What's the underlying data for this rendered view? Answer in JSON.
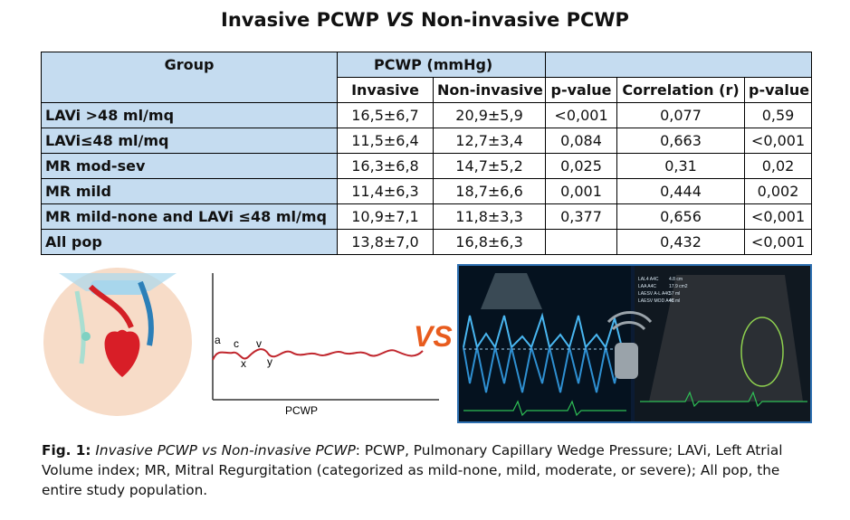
{
  "title": {
    "left": "Invasive PCWP",
    "vs": "VS",
    "right": "Non-invasive PCWP"
  },
  "table": {
    "header_group": "Group",
    "header_pcwp": "PCWP (mmHg)",
    "header_invasive": "Invasive",
    "header_noninvasive": "Non-invasive",
    "header_pvalue1": "p-value",
    "header_corr": "Correlation (r)",
    "header_pvalue2": "p-value",
    "rows": [
      {
        "group": "LAVi >48 ml/mq",
        "invasive": "16,5±6,7",
        "noninvasive": "20,9±5,9",
        "p1": "<0,001",
        "r": "0,077",
        "p2": "0,59"
      },
      {
        "group": "LAVi≤48 ml/mq",
        "invasive": "11,5±6,4",
        "noninvasive": "12,7±3,4",
        "p1": "0,084",
        "r": "0,663",
        "p2": "<0,001"
      },
      {
        "group": "MR mod-sev",
        "invasive": "16,3±6,8",
        "noninvasive": "14,7±5,2",
        "p1": "0,025",
        "r": "0,31",
        "p2": "0,02"
      },
      {
        "group": "MR mild",
        "invasive": "11,4±6,3",
        "noninvasive": "18,7±6,6",
        "p1": "0,001",
        "r": "0,444",
        "p2": "0,002"
      },
      {
        "group": "MR mild-none and LAVi ≤48 ml/mq",
        "invasive": "10,9±7,1",
        "noninvasive": "11,8±3,3",
        "p1": "0,377",
        "r": "0,656",
        "p2": "<0,001"
      },
      {
        "group": "All pop",
        "invasive": "13,8±7,0",
        "noninvasive": "16,8±6,3",
        "p1": "",
        "r": "0,432",
        "p2": "<0,001"
      }
    ]
  },
  "figure": {
    "vs_label": "VS",
    "trace_axis_label": "PCWP",
    "wave_labels": {
      "a": "a",
      "c": "c",
      "v": "v",
      "x": "x",
      "y": "y"
    },
    "echo_measurements": [
      "LAL4 A4C",
      "LAA A4C",
      "LAESV A-L A4C",
      "LAESV MOD A4C"
    ],
    "echo_values": [
      "4.8 cm",
      "17.9 cm2",
      "57 ml",
      "48 ml"
    ]
  },
  "caption": {
    "label": "Fig. 1:",
    "italic": "Invasive PCWP vs Non-invasive PCWP",
    "text": ": PCWP, Pulmonary Capillary Wedge Pressure; LAVi, Left Atrial Volume index; MR, Mitral Regurgitation (categorized as mild-none, mild, moderate, or severe); All pop, the entire study population."
  }
}
